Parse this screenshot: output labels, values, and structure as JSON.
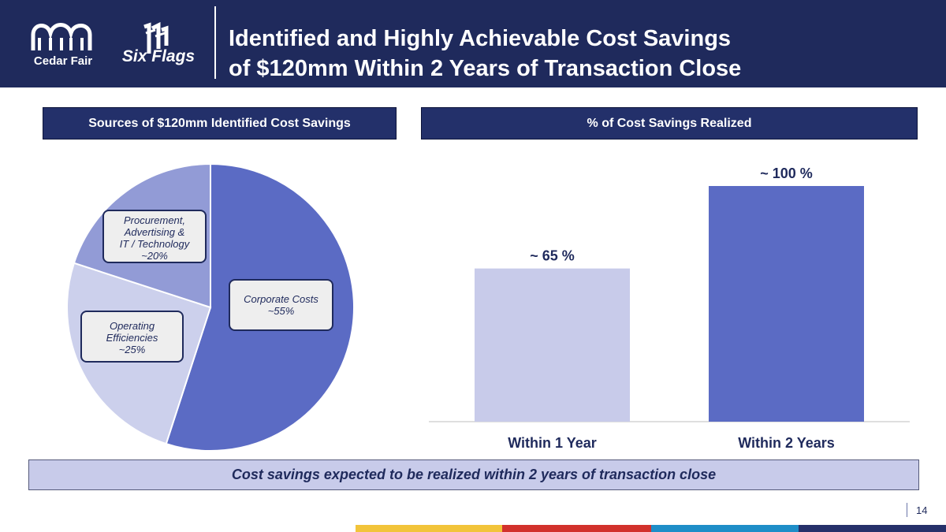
{
  "header": {
    "title_line1": "Identified and Highly Achievable Cost Savings",
    "title_line2": "of $120mm Within 2 Years of Transaction Close",
    "logo_left": "Cedar Fair",
    "logo_right": "Six Flags"
  },
  "panels": {
    "left_title": "Sources of $120mm Identified Cost Savings",
    "right_title": "% of Cost Savings Realized"
  },
  "pie_labels": {
    "procurement": [
      "Procurement,",
      "Advertising &",
      "IT / Technology",
      "~20%"
    ],
    "corporate": [
      "Corporate Costs",
      "~55%"
    ],
    "operating": [
      "Operating",
      "Efficiencies",
      "~25%"
    ]
  },
  "footer_note": "Cost savings expected to be realized within 2 years of transaction close",
  "page_number": "14",
  "colors": {
    "navy": "#1f2a5c",
    "pie_corporate": "#5b6bc4",
    "pie_operating": "#ccd0ec",
    "pie_procurement": "#929bd6",
    "bar_year1": "#c8cbea",
    "bar_year2": "#5b6bc4"
  },
  "chart_data": [
    {
      "type": "pie",
      "title": "Sources of $120mm Identified Cost Savings",
      "categories": [
        "Corporate Costs",
        "Operating Efficiencies",
        "Procurement, Advertising & IT / Technology"
      ],
      "values": [
        55,
        25,
        20
      ],
      "labels": [
        "~55%",
        "~25%",
        "~20%"
      ]
    },
    {
      "type": "bar",
      "title": "% of Cost Savings Realized",
      "categories": [
        "Within 1 Year",
        "Within 2 Years"
      ],
      "values": [
        65,
        100
      ],
      "labels": [
        "~ 65 %",
        "~ 100 %"
      ],
      "ylim": [
        0,
        100
      ]
    }
  ]
}
